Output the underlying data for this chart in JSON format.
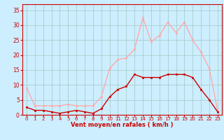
{
  "hours": [
    0,
    1,
    2,
    3,
    4,
    5,
    6,
    7,
    8,
    9,
    10,
    11,
    12,
    13,
    14,
    15,
    16,
    17,
    18,
    19,
    20,
    21,
    22,
    23
  ],
  "vent_moyen": [
    2.5,
    1.5,
    1.5,
    1.0,
    0.5,
    1.0,
    1.5,
    1.0,
    0.5,
    2.0,
    6.0,
    8.5,
    9.5,
    13.5,
    12.5,
    12.5,
    12.5,
    13.5,
    13.5,
    13.5,
    12.5,
    8.5,
    5.0,
    1.0
  ],
  "rafales": [
    9.0,
    3.0,
    3.0,
    3.0,
    3.0,
    3.5,
    3.0,
    3.0,
    3.0,
    6.0,
    15.5,
    18.5,
    19.0,
    22.0,
    32.5,
    24.5,
    26.5,
    31.0,
    27.5,
    31.0,
    25.0,
    21.0,
    15.5,
    1.5
  ],
  "color_moyen": "#cc0000",
  "color_rafales": "#ffaaaa",
  "background_color": "#cceeff",
  "grid_color": "#aacccc",
  "xlabel": "Vent moyen/en rafales ( km/h )",
  "ylim": [
    0,
    37
  ],
  "xlim": [
    -0.5,
    23.5
  ],
  "yticks": [
    0,
    5,
    10,
    15,
    20,
    25,
    30,
    35
  ],
  "xticks": [
    0,
    1,
    2,
    3,
    4,
    5,
    6,
    7,
    8,
    9,
    10,
    11,
    12,
    13,
    14,
    15,
    16,
    17,
    18,
    19,
    20,
    21,
    22,
    23
  ]
}
